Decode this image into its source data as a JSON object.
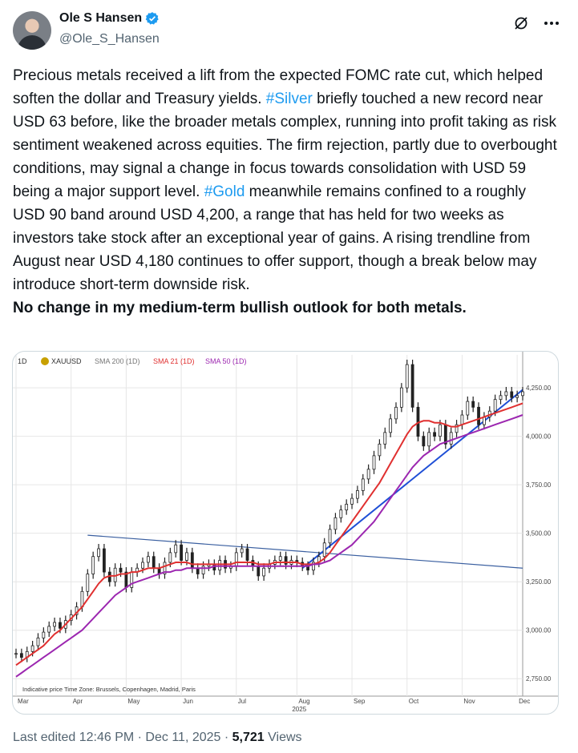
{
  "author": {
    "name": "Ole S Hansen",
    "handle": "@Ole_S_Hansen"
  },
  "icons": {
    "verified": "verified-badge-icon",
    "grok": "grok-icon",
    "more": "more-options-icon"
  },
  "tweet": {
    "part1": "Precious metals received a lift from the expected FOMC rate cut, which helped soften the dollar and Treasury yields. ",
    "tag1": "#Silver",
    "part2": " briefly touched a new record near USD 63 before, like the broader metals complex, running into profit taking as risk sentiment weakened across equities. The firm rejection, partly due to overbought conditions, may signal a change in focus towards consolidation with USD 59 being a major support level.  ",
    "tag2": "#Gold",
    "part3": " meanwhile remains confined to a roughly USD 90 band around USD 4,200, a range that has held for two weeks as investors take stock after an exceptional year of gains. A rising trendline from August near USD 4,180 continues to offer support, though a break below may introduce short-term downside risk.",
    "bold": "No change in my medium-term bullish outlook for both metals."
  },
  "chart_data": {
    "type": "line",
    "interval": "1D",
    "symbol": "XAUUSD",
    "legend": [
      "SMA 200 (1D)",
      "SMA 21 (1D)",
      "SMA 50 (1D)"
    ],
    "series": [
      {
        "name": "XAUUSD",
        "color": "#222222",
        "values": [
          2880,
          2860,
          2890,
          2920,
          2960,
          2990,
          3020,
          3040,
          3010,
          3050,
          3080,
          3120,
          3200,
          3290,
          3380,
          3420,
          3300,
          3250,
          3320,
          3300,
          3220,
          3300,
          3320,
          3350,
          3380,
          3320,
          3290,
          3350,
          3400,
          3440,
          3360,
          3400,
          3320,
          3290,
          3330,
          3340,
          3310,
          3360,
          3320,
          3330,
          3400,
          3420,
          3360,
          3330,
          3280,
          3320,
          3340,
          3360,
          3380,
          3340,
          3360,
          3350,
          3330,
          3310,
          3350,
          3380,
          3450,
          3520,
          3580,
          3620,
          3650,
          3680,
          3720,
          3780,
          3830,
          3900,
          3960,
          4020,
          4090,
          4150,
          4250,
          4370,
          4150,
          4000,
          3950,
          4020,
          4000,
          4060,
          3960,
          4020,
          4060,
          4110,
          4180,
          4150,
          4060,
          4100,
          4130,
          4190,
          4210,
          4230,
          4200,
          4210,
          4230
        ]
      },
      {
        "name": "SMA 21 (1D)",
        "color": "#e03030",
        "values": [
          2820,
          2840,
          2860,
          2880,
          2900,
          2920,
          2950,
          2980,
          3000,
          3030,
          3060,
          3090,
          3120,
          3160,
          3200,
          3240,
          3270,
          3280,
          3280,
          3290,
          3290,
          3300,
          3300,
          3310,
          3320,
          3320,
          3320,
          3330,
          3340,
          3350,
          3350,
          3350,
          3340,
          3340,
          3340,
          3340,
          3340,
          3340,
          3340,
          3340,
          3350,
          3350,
          3350,
          3350,
          3340,
          3340,
          3340,
          3350,
          3350,
          3350,
          3350,
          3350,
          3340,
          3340,
          3340,
          3350,
          3370,
          3400,
          3440,
          3480,
          3520,
          3560,
          3600,
          3640,
          3680,
          3720,
          3760,
          3810,
          3860,
          3910,
          3960,
          4010,
          4050,
          4070,
          4080,
          4080,
          4070,
          4070,
          4060,
          4050,
          4050,
          4060,
          4070,
          4080,
          4090,
          4100,
          4110,
          4120,
          4130,
          4140,
          4150,
          4160,
          4170
        ]
      },
      {
        "name": "SMA 50 (1D)",
        "color": "#9c27b0",
        "values": [
          2760,
          2780,
          2800,
          2820,
          2840,
          2860,
          2880,
          2900,
          2920,
          2940,
          2960,
          2980,
          3000,
          3030,
          3060,
          3090,
          3120,
          3150,
          3180,
          3200,
          3220,
          3240,
          3250,
          3260,
          3270,
          3280,
          3290,
          3300,
          3300,
          3310,
          3310,
          3320,
          3320,
          3320,
          3320,
          3320,
          3330,
          3330,
          3330,
          3330,
          3330,
          3330,
          3330,
          3330,
          3330,
          3330,
          3330,
          3330,
          3330,
          3330,
          3330,
          3330,
          3330,
          3330,
          3340,
          3340,
          3350,
          3360,
          3380,
          3400,
          3420,
          3440,
          3470,
          3500,
          3530,
          3560,
          3600,
          3640,
          3680,
          3720,
          3760,
          3800,
          3840,
          3870,
          3900,
          3920,
          3940,
          3960,
          3970,
          3980,
          3990,
          4000,
          4010,
          4020,
          4030,
          4040,
          4050,
          4060,
          4070,
          4080,
          4090,
          4100,
          4110
        ]
      }
    ],
    "trendlines": [
      {
        "name": "resistance-trendline",
        "color": "#3a5fa0",
        "from": [
          13,
          3490
        ],
        "to": [
          92,
          3320
        ]
      },
      {
        "name": "rising-trendline",
        "color": "#1f4fd6",
        "from": [
          52,
          3320
        ],
        "to": [
          92,
          4240
        ]
      }
    ],
    "ylim": [
      2660,
      4420
    ],
    "y_ticks": [
      "2,750.00",
      "3,000.00",
      "3,250.00",
      "3,500.00",
      "3,750.00",
      "4,000.00",
      "4,250.00"
    ],
    "y_tick_values": [
      2750,
      3000,
      3250,
      3500,
      3750,
      4000,
      4250
    ],
    "x_ticks": [
      "Mar",
      "Apr",
      "May",
      "Jun",
      "Jul",
      "Aug",
      "Sep",
      "Oct",
      "Nov",
      "Dec"
    ],
    "x_tick_index": [
      0,
      10,
      20,
      30,
      40,
      51,
      61,
      71,
      81,
      91
    ],
    "year_label": "2025",
    "footer_note": "Indicative price   Time Zone: Brussels, Copenhagen, Madrid, Paris",
    "colors": {
      "grid": "#e6e6e6",
      "gold_icon": "#c8a000"
    }
  },
  "meta": {
    "edited": "Last edited 12:46 PM · Dec 11, 2025 · ",
    "views_count": "5,721",
    "views_label": " Views"
  }
}
